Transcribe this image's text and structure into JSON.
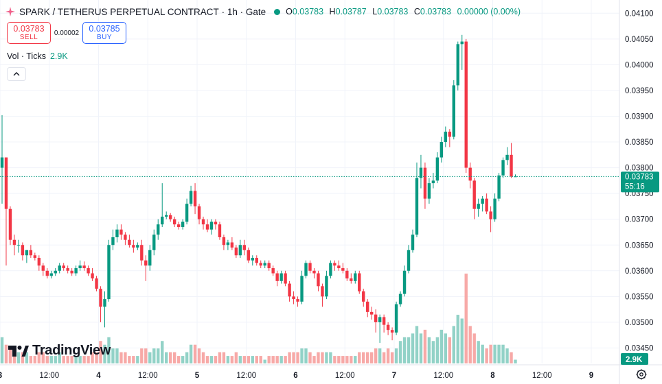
{
  "header": {
    "symbol": "SPARK / TETHERUS PERPETUAL CONTRACT",
    "interval": "1h",
    "exchange": "Gate",
    "ohlc": {
      "o_label": "O",
      "o": "0.03783",
      "h_label": "H",
      "h": "0.03787",
      "l_label": "L",
      "l": "0.03783",
      "c_label": "C",
      "c": "0.03783",
      "change": "0.00000 (0.00%)"
    }
  },
  "trade": {
    "sell_price": "0.03783",
    "sell_label": "SELL",
    "spread": "0.00002",
    "buy_price": "0.03785",
    "buy_label": "BUY"
  },
  "volume_indicator": {
    "label": "Vol · Ticks",
    "value": "2.9K"
  },
  "brand": {
    "logo_text": "TradingView"
  },
  "colors": {
    "up": "#089981",
    "down": "#f23645",
    "up_vol": "#92d2c7",
    "down_vol": "#f7a9a7",
    "grid": "#f0f3fa",
    "buy": "#2962ff"
  },
  "icons": {
    "collapse": "chevron-up-icon",
    "settings": "gear-icon",
    "logo": "tradingview-logo-icon"
  },
  "chart_data": {
    "type": "candlestick",
    "interval": "1h",
    "price_axis": {
      "ticks": [
        "0.04100",
        "0.04050",
        "0.04000",
        "0.03950",
        "0.03900",
        "0.03850",
        "0.03800",
        "0.03750",
        "0.03700",
        "0.03650",
        "0.03600",
        "0.03550",
        "0.03500",
        "0.03450"
      ],
      "range": [
        0.0342,
        0.04115
      ]
    },
    "time_axis": {
      "labels": [
        "3",
        "12:00",
        "4",
        "12:00",
        "5",
        "12:00",
        "6",
        "12:00",
        "7",
        "12:00",
        "8",
        "12:00",
        "9"
      ]
    },
    "last_price": {
      "value": "0.03783",
      "countdown": "55:16"
    },
    "volume_last": "2.9K",
    "candles": [
      [
        0.038,
        0.03902,
        0.0373,
        0.0382,
        7
      ],
      [
        0.0382,
        0.0382,
        0.0361,
        0.0372,
        5
      ],
      [
        0.0372,
        0.03725,
        0.0365,
        0.0366,
        4
      ],
      [
        0.0366,
        0.0367,
        0.0363,
        0.0365,
        3
      ],
      [
        0.0365,
        0.0366,
        0.03635,
        0.0365,
        3
      ],
      [
        0.0365,
        0.03655,
        0.0362,
        0.0363,
        3
      ],
      [
        0.0363,
        0.0364,
        0.03615,
        0.0364,
        3
      ],
      [
        0.0364,
        0.0365,
        0.03625,
        0.0363,
        2
      ],
      [
        0.0363,
        0.03635,
        0.0362,
        0.03625,
        2
      ],
      [
        0.03625,
        0.0363,
        0.036,
        0.0361,
        3
      ],
      [
        0.0361,
        0.03615,
        0.0359,
        0.036,
        3
      ],
      [
        0.036,
        0.03605,
        0.03585,
        0.0359,
        2
      ],
      [
        0.0359,
        0.036,
        0.03585,
        0.03595,
        2
      ],
      [
        0.03595,
        0.03605,
        0.0359,
        0.036,
        2
      ],
      [
        0.036,
        0.03615,
        0.03595,
        0.0361,
        3
      ],
      [
        0.0361,
        0.03615,
        0.036,
        0.03605,
        2
      ],
      [
        0.03605,
        0.0361,
        0.03595,
        0.036,
        2
      ],
      [
        0.036,
        0.03605,
        0.0359,
        0.03595,
        2
      ],
      [
        0.03595,
        0.0361,
        0.0359,
        0.03605,
        2
      ],
      [
        0.03605,
        0.0362,
        0.036,
        0.0361,
        2
      ],
      [
        0.0361,
        0.03618,
        0.036,
        0.03605,
        2
      ],
      [
        0.03605,
        0.0361,
        0.0359,
        0.03595,
        2
      ],
      [
        0.03595,
        0.03605,
        0.0358,
        0.03585,
        3
      ],
      [
        0.03585,
        0.0359,
        0.0356,
        0.03565,
        3
      ],
      [
        0.03565,
        0.0357,
        0.035,
        0.0353,
        6
      ],
      [
        0.0353,
        0.0356,
        0.0349,
        0.03545,
        5
      ],
      [
        0.03545,
        0.0366,
        0.0354,
        0.0365,
        7
      ],
      [
        0.0365,
        0.0368,
        0.0364,
        0.03665,
        4
      ],
      [
        0.03665,
        0.0369,
        0.03655,
        0.0368,
        4
      ],
      [
        0.0368,
        0.0369,
        0.0366,
        0.0367,
        3
      ],
      [
        0.0367,
        0.03675,
        0.0365,
        0.0366,
        3
      ],
      [
        0.0366,
        0.0367,
        0.03645,
        0.0365,
        2
      ],
      [
        0.0365,
        0.0366,
        0.03635,
        0.03645,
        2
      ],
      [
        0.03645,
        0.03655,
        0.0364,
        0.0365,
        2
      ],
      [
        0.0365,
        0.0366,
        0.0361,
        0.0362,
        4
      ],
      [
        0.0362,
        0.0363,
        0.0358,
        0.0361,
        4
      ],
      [
        0.0361,
        0.0365,
        0.036,
        0.0364,
        3
      ],
      [
        0.0364,
        0.0368,
        0.0363,
        0.0367,
        4
      ],
      [
        0.0367,
        0.037,
        0.0366,
        0.0369,
        4
      ],
      [
        0.0369,
        0.0377,
        0.03685,
        0.03705,
        6
      ],
      [
        0.03705,
        0.03715,
        0.037,
        0.03708,
        3
      ],
      [
        0.03708,
        0.03712,
        0.03695,
        0.037,
        3
      ],
      [
        0.037,
        0.03705,
        0.03685,
        0.0369,
        3
      ],
      [
        0.0369,
        0.03695,
        0.0368,
        0.03685,
        2
      ],
      [
        0.03685,
        0.037,
        0.0368,
        0.03695,
        2
      ],
      [
        0.03695,
        0.0374,
        0.0369,
        0.0373,
        3
      ],
      [
        0.0373,
        0.03765,
        0.03725,
        0.03755,
        5
      ],
      [
        0.03755,
        0.0377,
        0.0371,
        0.03725,
        5
      ],
      [
        0.03725,
        0.0373,
        0.0369,
        0.037,
        4
      ],
      [
        0.037,
        0.03705,
        0.0368,
        0.0369,
        3
      ],
      [
        0.0369,
        0.037,
        0.03675,
        0.0368,
        2
      ],
      [
        0.0368,
        0.037,
        0.0367,
        0.03695,
        2
      ],
      [
        0.03695,
        0.037,
        0.0368,
        0.0369,
        2
      ],
      [
        0.0369,
        0.03695,
        0.0366,
        0.03665,
        3
      ],
      [
        0.03665,
        0.0367,
        0.0364,
        0.0365,
        3
      ],
      [
        0.0365,
        0.0366,
        0.0364,
        0.03655,
        2
      ],
      [
        0.03655,
        0.03665,
        0.0364,
        0.03645,
        2
      ],
      [
        0.03645,
        0.0365,
        0.03625,
        0.0363,
        3
      ],
      [
        0.0363,
        0.0366,
        0.03625,
        0.0365,
        2
      ],
      [
        0.0365,
        0.0366,
        0.0363,
        0.0364,
        2
      ],
      [
        0.0364,
        0.03645,
        0.03615,
        0.0362,
        2
      ],
      [
        0.0362,
        0.0363,
        0.0361,
        0.03625,
        2
      ],
      [
        0.03625,
        0.0363,
        0.0361,
        0.03615,
        2
      ],
      [
        0.03615,
        0.0362,
        0.03605,
        0.0361,
        2
      ],
      [
        0.0361,
        0.0362,
        0.03605,
        0.03615,
        1
      ],
      [
        0.03615,
        0.0362,
        0.036,
        0.03605,
        2
      ],
      [
        0.03605,
        0.0361,
        0.0359,
        0.03595,
        2
      ],
      [
        0.03595,
        0.036,
        0.0357,
        0.0358,
        2
      ],
      [
        0.0358,
        0.036,
        0.03575,
        0.03595,
        2
      ],
      [
        0.03595,
        0.036,
        0.0357,
        0.03575,
        2
      ],
      [
        0.03575,
        0.0358,
        0.0354,
        0.0355,
        3
      ],
      [
        0.0355,
        0.0356,
        0.03535,
        0.03545,
        3
      ],
      [
        0.03545,
        0.0355,
        0.0353,
        0.0354,
        3
      ],
      [
        0.0354,
        0.036,
        0.03535,
        0.0359,
        4
      ],
      [
        0.0359,
        0.0362,
        0.03585,
        0.03615,
        4
      ],
      [
        0.03615,
        0.0362,
        0.03595,
        0.036,
        3
      ],
      [
        0.036,
        0.03605,
        0.03585,
        0.03595,
        2
      ],
      [
        0.03595,
        0.036,
        0.0356,
        0.0357,
        3
      ],
      [
        0.0357,
        0.03575,
        0.0353,
        0.0355,
        3
      ],
      [
        0.0355,
        0.036,
        0.03545,
        0.0359,
        3
      ],
      [
        0.0359,
        0.0362,
        0.03585,
        0.03615,
        3
      ],
      [
        0.03615,
        0.0362,
        0.036,
        0.0361,
        2
      ],
      [
        0.0361,
        0.0362,
        0.036,
        0.03605,
        2
      ],
      [
        0.03605,
        0.03615,
        0.03595,
        0.036,
        2
      ],
      [
        0.036,
        0.03605,
        0.0358,
        0.03585,
        2
      ],
      [
        0.03585,
        0.03595,
        0.03575,
        0.0358,
        2
      ],
      [
        0.0358,
        0.036,
        0.03575,
        0.03595,
        2
      ],
      [
        0.03595,
        0.036,
        0.03555,
        0.0356,
        3
      ],
      [
        0.0356,
        0.03565,
        0.0353,
        0.0354,
        3
      ],
      [
        0.0354,
        0.03545,
        0.0351,
        0.0352,
        3
      ],
      [
        0.0352,
        0.0353,
        0.03505,
        0.03515,
        3
      ],
      [
        0.03515,
        0.03525,
        0.0348,
        0.035,
        4
      ],
      [
        0.035,
        0.03515,
        0.0346,
        0.0351,
        4
      ],
      [
        0.0351,
        0.03515,
        0.0348,
        0.03495,
        3
      ],
      [
        0.03495,
        0.035,
        0.03475,
        0.03485,
        4
      ],
      [
        0.03485,
        0.0349,
        0.03465,
        0.0348,
        3
      ],
      [
        0.0348,
        0.0354,
        0.03475,
        0.03535,
        4
      ],
      [
        0.03535,
        0.0356,
        0.0353,
        0.03555,
        6
      ],
      [
        0.03555,
        0.0361,
        0.0355,
        0.036,
        7
      ],
      [
        0.036,
        0.0365,
        0.03595,
        0.0364,
        7
      ],
      [
        0.0364,
        0.0368,
        0.03635,
        0.0367,
        8
      ],
      [
        0.0367,
        0.0381,
        0.03665,
        0.0378,
        10
      ],
      [
        0.0378,
        0.03825,
        0.0376,
        0.038,
        8
      ],
      [
        0.038,
        0.0381,
        0.0372,
        0.0374,
        9
      ],
      [
        0.0374,
        0.0378,
        0.0373,
        0.0377,
        7
      ],
      [
        0.0377,
        0.0379,
        0.0376,
        0.03775,
        6
      ],
      [
        0.03775,
        0.0383,
        0.0377,
        0.0382,
        7
      ],
      [
        0.0382,
        0.0386,
        0.0381,
        0.0385,
        9
      ],
      [
        0.0385,
        0.0388,
        0.0384,
        0.0387,
        8
      ],
      [
        0.0387,
        0.03875,
        0.0384,
        0.0386,
        7
      ],
      [
        0.0386,
        0.0397,
        0.03855,
        0.0396,
        10
      ],
      [
        0.0396,
        0.04045,
        0.0395,
        0.0404,
        13
      ],
      [
        0.0404,
        0.04058,
        0.0399,
        0.04045,
        12
      ],
      [
        0.04045,
        0.0405,
        0.0379,
        0.038,
        24
      ],
      [
        0.038,
        0.0381,
        0.0376,
        0.03775,
        10
      ],
      [
        0.03775,
        0.0378,
        0.037,
        0.0372,
        8
      ],
      [
        0.0372,
        0.0374,
        0.03705,
        0.0373,
        6
      ],
      [
        0.0373,
        0.03745,
        0.03715,
        0.0374,
        5
      ],
      [
        0.0374,
        0.0375,
        0.0371,
        0.03715,
        4
      ],
      [
        0.03715,
        0.03725,
        0.03675,
        0.037,
        5
      ],
      [
        0.037,
        0.0375,
        0.03695,
        0.0374,
        5
      ],
      [
        0.0374,
        0.0379,
        0.03735,
        0.03785,
        5
      ],
      [
        0.03785,
        0.0382,
        0.0378,
        0.03815,
        5
      ],
      [
        0.03815,
        0.0384,
        0.03805,
        0.03825,
        4
      ],
      [
        0.03825,
        0.03848,
        0.0378,
        0.03783,
        3
      ],
      [
        0.03783,
        0.03787,
        0.03783,
        0.03783,
        1
      ]
    ]
  }
}
